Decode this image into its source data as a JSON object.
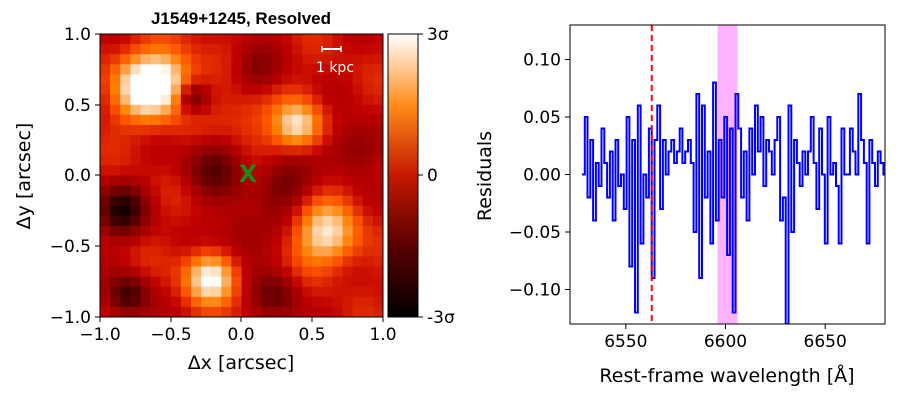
{
  "chart_data": [
    {
      "type": "heatmap",
      "title": "J1549+1245, Resolved",
      "xlabel": "Δx [arcsec]",
      "ylabel": "Δy [arcsec]",
      "xlim": [
        -1.0,
        1.0
      ],
      "ylim": [
        -1.0,
        1.0
      ],
      "x_ticks": [
        "−1.0",
        "−0.5",
        "0.0",
        "0.5",
        "1.0"
      ],
      "y_ticks": [
        "−1.0",
        "−0.5",
        "0.0",
        "0.5",
        "1.0"
      ],
      "colorscale": "gist_heat",
      "colorbar": {
        "range": [
          -3,
          3
        ],
        "tick_labels": [
          "3σ",
          "0",
          "-3σ"
        ]
      },
      "marker": {
        "label": "X",
        "x": 0.05,
        "y": 0.02,
        "color": "#1a8a1a"
      },
      "scalebar": {
        "label": "1 kpc",
        "x_range": [
          0.57,
          0.7
        ],
        "y": 0.89
      },
      "blobs": [
        {
          "x": -0.66,
          "y": 0.62,
          "amp": 3.2,
          "s": 0.17
        },
        {
          "x": -0.5,
          "y": 0.7,
          "amp": 1.2,
          "s": 0.14
        },
        {
          "x": 0.4,
          "y": 0.35,
          "amp": 2.4,
          "s": 0.12
        },
        {
          "x": 0.6,
          "y": -0.42,
          "amp": 2.5,
          "s": 0.16
        },
        {
          "x": -0.22,
          "y": -0.72,
          "amp": 2.9,
          "s": 0.13
        },
        {
          "x": 0.05,
          "y": 0.4,
          "amp": 0.8,
          "s": 0.15
        },
        {
          "x": -0.85,
          "y": -0.25,
          "amp": -2.6,
          "s": 0.12
        },
        {
          "x": -0.8,
          "y": -0.85,
          "amp": -2.2,
          "s": 0.1
        },
        {
          "x": 0.3,
          "y": -0.05,
          "amp": -1.4,
          "s": 0.14
        },
        {
          "x": -0.2,
          "y": 0.05,
          "amp": -1.6,
          "s": 0.14
        },
        {
          "x": 0.8,
          "y": 0.2,
          "amp": -1.2,
          "s": 0.13
        },
        {
          "x": 0.0,
          "y": -0.45,
          "amp": -1.0,
          "s": 0.15
        },
        {
          "x": -0.35,
          "y": 0.55,
          "amp": -1.8,
          "s": 0.08
        },
        {
          "x": 0.1,
          "y": 0.75,
          "amp": -1.0,
          "s": 0.12
        },
        {
          "x": 0.25,
          "y": -0.85,
          "amp": -1.4,
          "s": 0.12
        }
      ]
    },
    {
      "type": "line",
      "xlabel": "Rest-frame wavelength [Å]",
      "ylabel": "Residuals",
      "xlim": [
        6522,
        6680
      ],
      "ylim": [
        -0.13,
        0.13
      ],
      "x_ticks": [
        6550,
        6600,
        6650
      ],
      "x_tick_labels": [
        "6550",
        "6600",
        "6650"
      ],
      "y_ticks": [
        0.1,
        0.05,
        0.0,
        -0.05,
        -0.1
      ],
      "y_tick_labels": [
        "0.10",
        "0.05",
        "0.00",
        "−0.05",
        "−0.10"
      ],
      "color": "#0000ff",
      "x_start": 6528,
      "x_step": 1.4,
      "values": [
        0.0,
        0.05,
        -0.02,
        0.03,
        -0.04,
        0.01,
        -0.01,
        0.04,
        0.01,
        -0.02,
        0.02,
        -0.04,
        0.03,
        -0.01,
        0.0,
        -0.03,
        0.05,
        -0.08,
        0.03,
        -0.12,
        0.06,
        -0.06,
        0.0,
        -0.02,
        0.04,
        -0.09,
        0.03,
        0.06,
        -0.03,
        0.03,
        0.0,
        0.02,
        0.03,
        0.01,
        0.02,
        0.04,
        0.01,
        0.02,
        0.03,
        0.01,
        -0.05,
        0.07,
        -0.09,
        0.06,
        -0.02,
        0.02,
        -0.06,
        0.08,
        -0.04,
        0.03,
        -0.02,
        0.05,
        -0.07,
        0.04,
        -0.12,
        0.07,
        0.04,
        -0.02,
        0.02,
        -0.04,
        0.04,
        0.0,
        0.06,
        0.02,
        0.05,
        -0.01,
        0.03,
        0.02,
        0.0,
        0.03,
        0.05,
        -0.04,
        -0.02,
        -0.13,
        0.06,
        -0.05,
        0.03,
        0.01,
        -0.01,
        0.02,
        0.0,
        0.02,
        0.05,
        0.01,
        -0.03,
        0.04,
        0.0,
        -0.06,
        0.05,
        0.0,
        0.01,
        -0.01,
        -0.06,
        0.04,
        0.0,
        0.0,
        0.04,
        0.02,
        0.0,
        0.07,
        0.03,
        0.01,
        -0.06,
        0.03,
        0.01,
        -0.01,
        0.02,
        0.01,
        0.0,
        0.0,
        0.02,
        0.01,
        -0.01,
        0.02,
        0.02
      ],
      "hline": 0.0,
      "vline": {
        "x": 6563,
        "color": "#ff0000",
        "style": "dashed"
      },
      "vspan": {
        "x0": 6596,
        "x1": 6606,
        "color": "#ff00ff"
      }
    }
  ]
}
